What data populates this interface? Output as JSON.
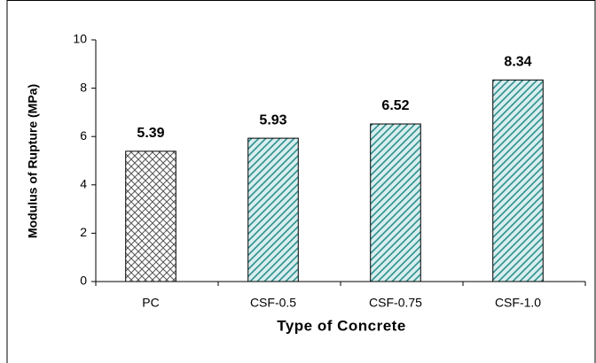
{
  "chart_data": {
    "type": "bar",
    "y_label": "Modulus of Rupture (MPa)",
    "x_label": "Type of Concrete",
    "categories": [
      "PC",
      "CSF-0.5",
      "CSF-0.75",
      "CSF-1.0"
    ],
    "values": [
      5.39,
      5.93,
      6.52,
      8.34
    ],
    "colors": [
      "#555555",
      "#2f8f8f",
      "#2f8f8f",
      "#2f8f8f"
    ],
    "patterns": [
      "crosshatch",
      "diagonal",
      "diagonal",
      "diagonal"
    ],
    "ylim": [
      0,
      10
    ],
    "yticks": [
      0,
      2,
      4,
      6,
      8,
      10
    ],
    "grid": false
  }
}
